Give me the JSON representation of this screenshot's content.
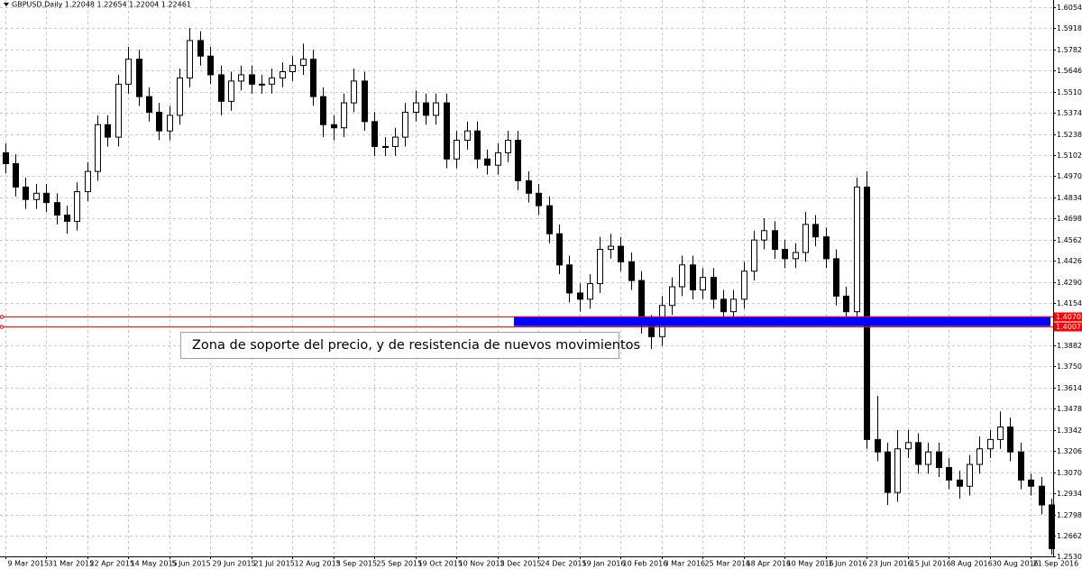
{
  "chart_data": {
    "type": "candlestick",
    "title": "GBPUSD,Daily 1.22048 1.22654 1.22004 1.22461",
    "categories": [
      "9 Mar 2015",
      null,
      null,
      null,
      "31 Mar 2015",
      null,
      null,
      null,
      "22 Apr 2015",
      null,
      null,
      null,
      "14 May 2015",
      null,
      null,
      null,
      "5 Jun 2015",
      null,
      null,
      null,
      "29 Jun 2015",
      null,
      null,
      null,
      "21 Jul 2015",
      null,
      null,
      null,
      "12 Aug 2015",
      null,
      null,
      null,
      "3 Sep 2015",
      null,
      null,
      null,
      "25 Sep 2015",
      null,
      null,
      null,
      "19 Oct 2015",
      null,
      null,
      null,
      "10 Nov 2015",
      null,
      null,
      null,
      "2 Dec 2015",
      null,
      null,
      null,
      "24 Dec 2015",
      null,
      null,
      null,
      "19 Jan 2016",
      null,
      null,
      null,
      "10 Feb 2016",
      null,
      null,
      null,
      "3 Mar 2016",
      null,
      null,
      null,
      "25 Mar 2016",
      null,
      null,
      null,
      "18 Apr 2016",
      null,
      null,
      null,
      "10 May 2016",
      null,
      null,
      null,
      "1 Jun 2016",
      null,
      null,
      null,
      "23 Jun 2016",
      null,
      null,
      null,
      "15 Jul 2016",
      null,
      null,
      null,
      "8 Aug 2016",
      null,
      null,
      null,
      "30 Aug 2016",
      null,
      null,
      null,
      "21 Sep 2016",
      null,
      null
    ],
    "open": [
      1.512,
      1.505,
      1.49,
      1.482,
      1.486,
      1.48,
      1.472,
      1.468,
      1.487,
      1.5,
      1.53,
      1.522,
      1.556,
      1.572,
      1.548,
      1.538,
      1.526,
      1.536,
      1.56,
      1.584,
      1.574,
      1.562,
      1.545,
      1.558,
      1.562,
      1.556,
      1.556,
      1.56,
      1.564,
      1.568,
      1.572,
      1.548,
      1.53,
      1.528,
      1.544,
      1.558,
      1.532,
      1.516,
      1.516,
      1.522,
      1.538,
      1.544,
      1.536,
      1.544,
      1.508,
      1.52,
      1.526,
      1.508,
      1.504,
      1.512,
      1.52,
      1.494,
      1.486,
      1.478,
      1.46,
      1.44,
      1.422,
      1.418,
      1.428,
      1.45,
      1.452,
      1.442,
      1.43,
      1.402,
      1.394,
      1.414,
      1.426,
      1.44,
      1.424,
      1.432,
      1.418,
      1.41,
      1.418,
      1.436,
      1.456,
      1.462,
      1.45,
      1.444,
      1.448,
      1.466,
      1.458,
      1.444,
      1.42,
      1.41,
      1.49,
      1.328,
      1.32,
      1.294,
      1.322,
      1.326,
      1.312,
      1.32,
      1.31,
      1.302,
      1.298,
      1.312,
      1.322,
      1.328,
      1.336,
      1.32,
      1.302,
      1.298,
      1.286
    ],
    "high": [
      1.518,
      1.511,
      1.496,
      1.492,
      1.492,
      1.486,
      1.478,
      1.493,
      1.506,
      1.536,
      1.536,
      1.562,
      1.58,
      1.578,
      1.554,
      1.544,
      1.542,
      1.566,
      1.592,
      1.59,
      1.58,
      1.568,
      1.564,
      1.568,
      1.568,
      1.562,
      1.566,
      1.57,
      1.574,
      1.582,
      1.578,
      1.554,
      1.536,
      1.55,
      1.566,
      1.564,
      1.538,
      1.522,
      1.528,
      1.544,
      1.552,
      1.55,
      1.55,
      1.55,
      1.526,
      1.532,
      1.532,
      1.514,
      1.518,
      1.526,
      1.526,
      1.5,
      1.492,
      1.484,
      1.466,
      1.446,
      1.428,
      1.434,
      1.458,
      1.46,
      1.458,
      1.448,
      1.436,
      1.408,
      1.42,
      1.432,
      1.446,
      1.446,
      1.438,
      1.438,
      1.424,
      1.424,
      1.442,
      1.462,
      1.47,
      1.468,
      1.456,
      1.454,
      1.474,
      1.472,
      1.464,
      1.45,
      1.426,
      1.496,
      1.5,
      1.356,
      1.326,
      1.334,
      1.334,
      1.332,
      1.326,
      1.326,
      1.316,
      1.308,
      1.318,
      1.33,
      1.334,
      1.346,
      1.342,
      1.326,
      1.306,
      1.304,
      1.29
    ],
    "low": [
      1.499,
      1.484,
      1.476,
      1.476,
      1.474,
      1.466,
      1.46,
      1.462,
      1.481,
      1.494,
      1.516,
      1.516,
      1.55,
      1.542,
      1.532,
      1.52,
      1.52,
      1.53,
      1.554,
      1.568,
      1.556,
      1.536,
      1.539,
      1.552,
      1.55,
      1.55,
      1.55,
      1.554,
      1.558,
      1.562,
      1.542,
      1.522,
      1.52,
      1.522,
      1.538,
      1.526,
      1.51,
      1.51,
      1.51,
      1.516,
      1.532,
      1.53,
      1.53,
      1.502,
      1.502,
      1.514,
      1.502,
      1.498,
      1.498,
      1.506,
      1.488,
      1.48,
      1.472,
      1.454,
      1.434,
      1.416,
      1.41,
      1.412,
      1.422,
      1.444,
      1.436,
      1.424,
      1.396,
      1.386,
      1.388,
      1.408,
      1.42,
      1.418,
      1.418,
      1.412,
      1.404,
      1.404,
      1.412,
      1.43,
      1.45,
      1.444,
      1.438,
      1.438,
      1.442,
      1.452,
      1.438,
      1.414,
      1.404,
      1.404,
      1.322,
      1.314,
      1.286,
      1.288,
      1.316,
      1.306,
      1.306,
      1.304,
      1.296,
      1.29,
      1.292,
      1.306,
      1.316,
      1.322,
      1.314,
      1.296,
      1.292,
      1.28,
      1.254
    ],
    "close": [
      1.505,
      1.49,
      1.482,
      1.486,
      1.48,
      1.472,
      1.468,
      1.487,
      1.5,
      1.53,
      1.522,
      1.556,
      1.572,
      1.548,
      1.538,
      1.526,
      1.536,
      1.56,
      1.584,
      1.574,
      1.562,
      1.545,
      1.558,
      1.562,
      1.556,
      1.556,
      1.56,
      1.564,
      1.568,
      1.572,
      1.548,
      1.53,
      1.528,
      1.544,
      1.558,
      1.532,
      1.516,
      1.516,
      1.522,
      1.538,
      1.544,
      1.536,
      1.544,
      1.508,
      1.52,
      1.526,
      1.508,
      1.504,
      1.512,
      1.52,
      1.494,
      1.486,
      1.478,
      1.46,
      1.44,
      1.422,
      1.418,
      1.428,
      1.45,
      1.452,
      1.442,
      1.43,
      1.402,
      1.394,
      1.414,
      1.426,
      1.44,
      1.424,
      1.432,
      1.418,
      1.41,
      1.418,
      1.436,
      1.456,
      1.462,
      1.45,
      1.444,
      1.448,
      1.466,
      1.458,
      1.444,
      1.42,
      1.41,
      1.49,
      1.328,
      1.32,
      1.294,
      1.322,
      1.326,
      1.312,
      1.32,
      1.31,
      1.302,
      1.298,
      1.312,
      1.322,
      1.328,
      1.336,
      1.32,
      1.302,
      1.298,
      1.286,
      1.258
    ],
    "color": "#000000",
    "ylim": [
      1.253,
      1.61
    ],
    "yticks": [
      {
        "value": 1.6054,
        "label": "1.60540"
      },
      {
        "value": 1.5918,
        "label": "1.59180"
      },
      {
        "value": 1.5782,
        "label": "1.57820"
      },
      {
        "value": 1.5646,
        "label": "1.56460"
      },
      {
        "value": 1.551,
        "label": "1.55100"
      },
      {
        "value": 1.5374,
        "label": "1.53740"
      },
      {
        "value": 1.5238,
        "label": "1.52380"
      },
      {
        "value": 1.5102,
        "label": "1.51020"
      },
      {
        "value": 1.497,
        "label": "1.49700"
      },
      {
        "value": 1.4834,
        "label": "1.48340"
      },
      {
        "value": 1.4698,
        "label": "1.46980"
      },
      {
        "value": 1.4562,
        "label": "1.45620"
      },
      {
        "value": 1.4426,
        "label": "1.44260"
      },
      {
        "value": 1.429,
        "label": "1.42900"
      },
      {
        "value": 1.4154,
        "label": "1.41540"
      },
      {
        "value": 1.3882,
        "label": "1.38820"
      },
      {
        "value": 1.375,
        "label": "1.37500"
      },
      {
        "value": 1.3614,
        "label": "1.36140"
      },
      {
        "value": 1.3478,
        "label": "1.34780"
      },
      {
        "value": 1.3342,
        "label": "1.33420"
      },
      {
        "value": 1.3206,
        "label": "1.32060"
      },
      {
        "value": 1.307,
        "label": "1.30700"
      },
      {
        "value": 1.2934,
        "label": "1.29340"
      },
      {
        "value": 1.2798,
        "label": "1.27980"
      },
      {
        "value": 1.2662,
        "label": "1.26620"
      },
      {
        "value": 1.253,
        "label": "1.25300"
      }
    ],
    "grid": true,
    "levels": {
      "values": [
        1.40705,
        1.40071
      ],
      "value_labels": [
        "1.40705",
        "1.40071"
      ],
      "color": "#ff0000"
    },
    "zone_color": "#0000ff",
    "annotation": "Zona de soporte del precio, y de resistencia de nuevos movimientos"
  }
}
